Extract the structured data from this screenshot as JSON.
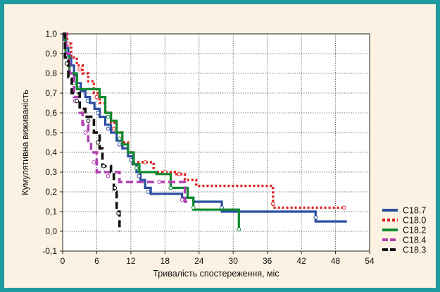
{
  "chart_data": {
    "type": "line",
    "title": "",
    "xlabel": "Тривалість спостереження, міс",
    "ylabel": "Кумулятивна виживаність",
    "xlim": [
      0,
      54
    ],
    "ylim": [
      -0.1,
      1.0
    ],
    "xticks": [
      0,
      6,
      12,
      18,
      24,
      30,
      36,
      42,
      48,
      54
    ],
    "yticks": [
      -0.1,
      0.0,
      0.1,
      0.2,
      0.3,
      0.4,
      0.5,
      0.6,
      0.7,
      0.8,
      0.9,
      1.0
    ],
    "xtick_labels": [
      "0",
      "6",
      "12",
      "18",
      "24",
      "30",
      "36",
      "42",
      "48",
      "54"
    ],
    "ytick_labels": [
      "-0,1",
      "0,0",
      "0,1",
      "0,2",
      "0,3",
      "0,4",
      "0,5",
      "0,6",
      "0,7",
      "0,8",
      "0,9",
      "1,0"
    ],
    "grid": true,
    "legend_position": "right",
    "series": [
      {
        "name": "C18.7",
        "color": "#2b4ea0",
        "dash": "solid",
        "steps": [
          [
            0,
            1.0
          ],
          [
            0.3,
            0.97
          ],
          [
            0.6,
            0.93
          ],
          [
            1.0,
            0.89
          ],
          [
            1.5,
            0.84
          ],
          [
            2.0,
            0.79
          ],
          [
            2.5,
            0.75
          ],
          [
            3.2,
            0.71
          ],
          [
            4.0,
            0.68
          ],
          [
            4.8,
            0.65
          ],
          [
            5.6,
            0.62
          ],
          [
            6.5,
            0.58
          ],
          [
            7.5,
            0.54
          ],
          [
            8.5,
            0.5
          ],
          [
            9.5,
            0.46
          ],
          [
            10.5,
            0.42
          ],
          [
            11.5,
            0.38
          ],
          [
            12.3,
            0.34
          ],
          [
            13.0,
            0.3
          ],
          [
            13.7,
            0.26
          ],
          [
            14.5,
            0.22
          ],
          [
            15.5,
            0.19
          ],
          [
            21.0,
            0.17
          ],
          [
            23.0,
            0.15
          ],
          [
            28.0,
            0.1
          ],
          [
            44.5,
            0.05
          ],
          [
            50,
            0.05
          ]
        ],
        "censored": [
          [
            1.2,
            0.87
          ],
          [
            2.8,
            0.74
          ],
          [
            4.4,
            0.66
          ],
          [
            6.2,
            0.6
          ],
          [
            8.0,
            0.52
          ],
          [
            10.0,
            0.44
          ],
          [
            12.0,
            0.36
          ],
          [
            13.4,
            0.28
          ],
          [
            15.0,
            0.2
          ],
          [
            28.0,
            0.12
          ],
          [
            44.5,
            0.07
          ]
        ]
      },
      {
        "name": "C18.0",
        "color": "#e02020",
        "dash": "dotted",
        "steps": [
          [
            0,
            1.0
          ],
          [
            0.8,
            0.95
          ],
          [
            1.5,
            0.88
          ],
          [
            2.5,
            0.84
          ],
          [
            3.5,
            0.8
          ],
          [
            4.5,
            0.76
          ],
          [
            5.5,
            0.7
          ],
          [
            6.5,
            0.65
          ],
          [
            7.5,
            0.6
          ],
          [
            8.5,
            0.55
          ],
          [
            9.5,
            0.5
          ],
          [
            10.5,
            0.45
          ],
          [
            11.5,
            0.4
          ],
          [
            12.5,
            0.35
          ],
          [
            15.0,
            0.35
          ],
          [
            16.0,
            0.3
          ],
          [
            20.0,
            0.29
          ],
          [
            21.5,
            0.26
          ],
          [
            23.5,
            0.23
          ],
          [
            37.0,
            0.12
          ],
          [
            49.5,
            0.12
          ]
        ],
        "censored": [
          [
            1.0,
            0.95
          ],
          [
            3.0,
            0.82
          ],
          [
            6.0,
            0.68
          ],
          [
            9.0,
            0.52
          ],
          [
            14.5,
            0.35
          ],
          [
            18.0,
            0.3
          ],
          [
            20.5,
            0.29
          ],
          [
            37.0,
            0.14
          ],
          [
            49.5,
            0.12
          ]
        ]
      },
      {
        "name": "C18.2",
        "color": "#0e8a2e",
        "dash": "solid",
        "steps": [
          [
            0,
            1.0
          ],
          [
            0.5,
            0.9
          ],
          [
            1.2,
            0.8
          ],
          [
            2.5,
            0.72
          ],
          [
            6.5,
            0.68
          ],
          [
            7.5,
            0.6
          ],
          [
            8.5,
            0.56
          ],
          [
            9.5,
            0.5
          ],
          [
            10.5,
            0.44
          ],
          [
            11.5,
            0.4
          ],
          [
            12.5,
            0.34
          ],
          [
            13.5,
            0.3
          ],
          [
            16.5,
            0.29
          ],
          [
            19.0,
            0.22
          ],
          [
            22.0,
            0.17
          ],
          [
            23.0,
            0.11
          ],
          [
            31.0,
            0.0
          ]
        ],
        "censored": [
          [
            2.0,
            0.75
          ],
          [
            8.0,
            0.58
          ],
          [
            10.0,
            0.47
          ],
          [
            13.0,
            0.32
          ],
          [
            19.0,
            0.22
          ],
          [
            23.0,
            0.12
          ],
          [
            31.0,
            0.01
          ]
        ]
      },
      {
        "name": "C18.4",
        "color": "#b040b0",
        "dash": "dashed",
        "steps": [
          [
            0,
            1.0
          ],
          [
            0.6,
            0.9
          ],
          [
            1.2,
            0.8
          ],
          [
            2.0,
            0.68
          ],
          [
            3.0,
            0.6
          ],
          [
            3.5,
            0.54
          ],
          [
            4.5,
            0.45
          ],
          [
            5.0,
            0.4
          ],
          [
            6.0,
            0.3
          ],
          [
            10.0,
            0.25
          ],
          [
            16.0,
            0.25
          ],
          [
            21.5,
            0.15
          ],
          [
            22.0,
            0.15
          ]
        ],
        "censored": [
          [
            1.0,
            0.85
          ],
          [
            2.2,
            0.66
          ],
          [
            4.0,
            0.5
          ],
          [
            5.5,
            0.35
          ],
          [
            8.0,
            0.28
          ],
          [
            17.0,
            0.25
          ],
          [
            21.0,
            0.16
          ]
        ]
      },
      {
        "name": "C18.3",
        "color": "#111111",
        "dash": "dashed",
        "steps": [
          [
            0,
            1.0
          ],
          [
            0.4,
            0.88
          ],
          [
            1.0,
            0.78
          ],
          [
            1.6,
            0.7
          ],
          [
            3.0,
            0.62
          ],
          [
            4.0,
            0.58
          ],
          [
            5.5,
            0.5
          ],
          [
            6.5,
            0.42
          ],
          [
            7.0,
            0.33
          ],
          [
            8.5,
            0.3
          ],
          [
            9.0,
            0.2
          ],
          [
            9.5,
            0.1
          ],
          [
            10,
            0.0
          ]
        ],
        "censored": [
          [
            0.7,
            0.85
          ],
          [
            2.5,
            0.66
          ],
          [
            4.5,
            0.56
          ],
          [
            6.2,
            0.45
          ],
          [
            7.2,
            0.33
          ],
          [
            9.2,
            0.22
          ],
          [
            9.8,
            0.09
          ]
        ]
      }
    ]
  }
}
